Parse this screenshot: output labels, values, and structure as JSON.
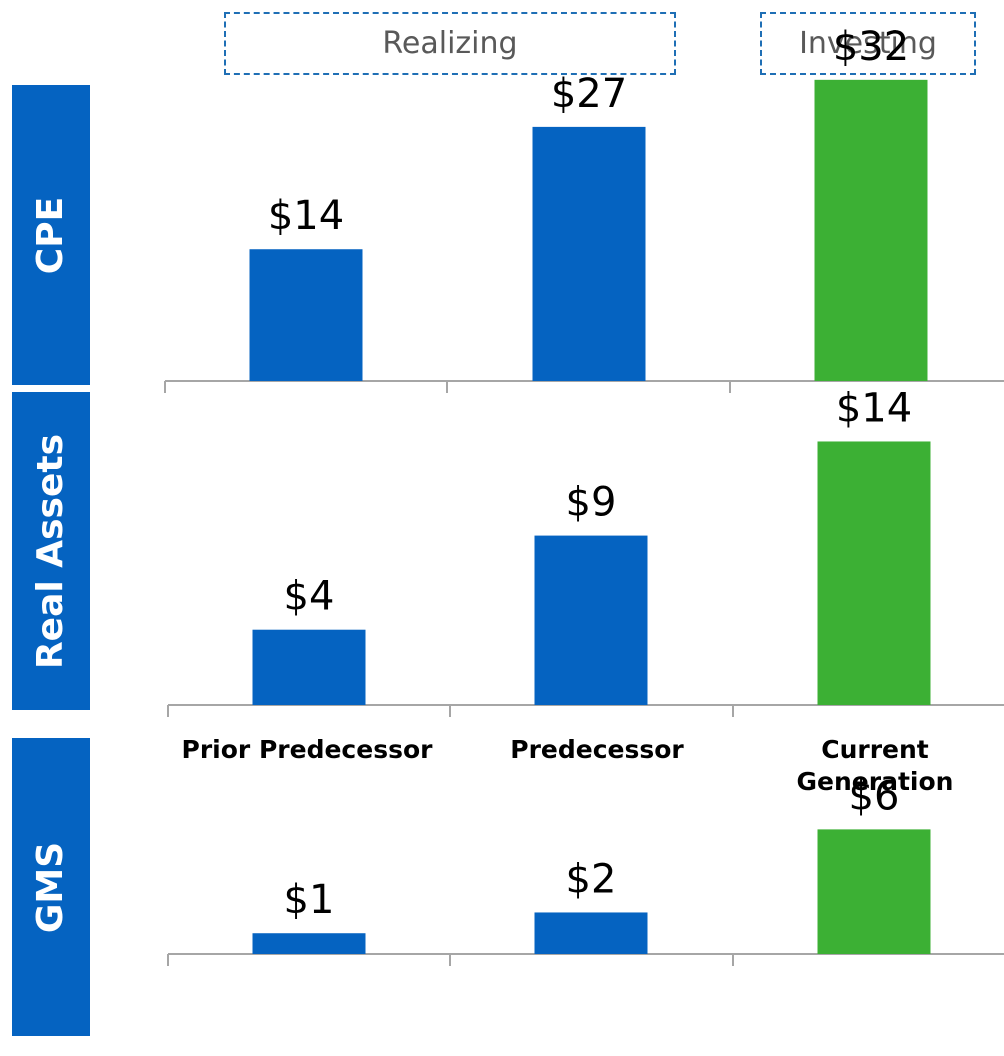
{
  "phases": [
    {
      "label": "Realizing"
    },
    {
      "label": "Investing"
    }
  ],
  "categories": [
    "Prior Predecessor",
    "Predecessor",
    "Current Generation"
  ],
  "colors": {
    "realizing": "#0563c1",
    "investing": "#3cb034",
    "axis": "#a6a6a6"
  },
  "chart_data": [
    {
      "type": "bar",
      "segment": "CPE",
      "categories": [
        "Prior Predecessor",
        "Predecessor",
        "Current Generation"
      ],
      "values": [
        14,
        27,
        32
      ],
      "labels": [
        "$14",
        "$27",
        "$32"
      ],
      "ylim": [
        0,
        34
      ]
    },
    {
      "type": "bar",
      "segment": "Real Assets",
      "categories": [
        "Prior Predecessor",
        "Predecessor",
        "Current Generation"
      ],
      "values": [
        4,
        9,
        14
      ],
      "labels": [
        "$4",
        "$9",
        "$14"
      ],
      "ylim": [
        0,
        17
      ]
    },
    {
      "type": "bar",
      "segment": "GMS",
      "categories": [
        "Prior Predecessor",
        "Predecessor",
        "Current Generation"
      ],
      "values": [
        1,
        2,
        6
      ],
      "labels": [
        "$1",
        "$2",
        "$6"
      ],
      "ylim": [
        0,
        13
      ]
    }
  ]
}
